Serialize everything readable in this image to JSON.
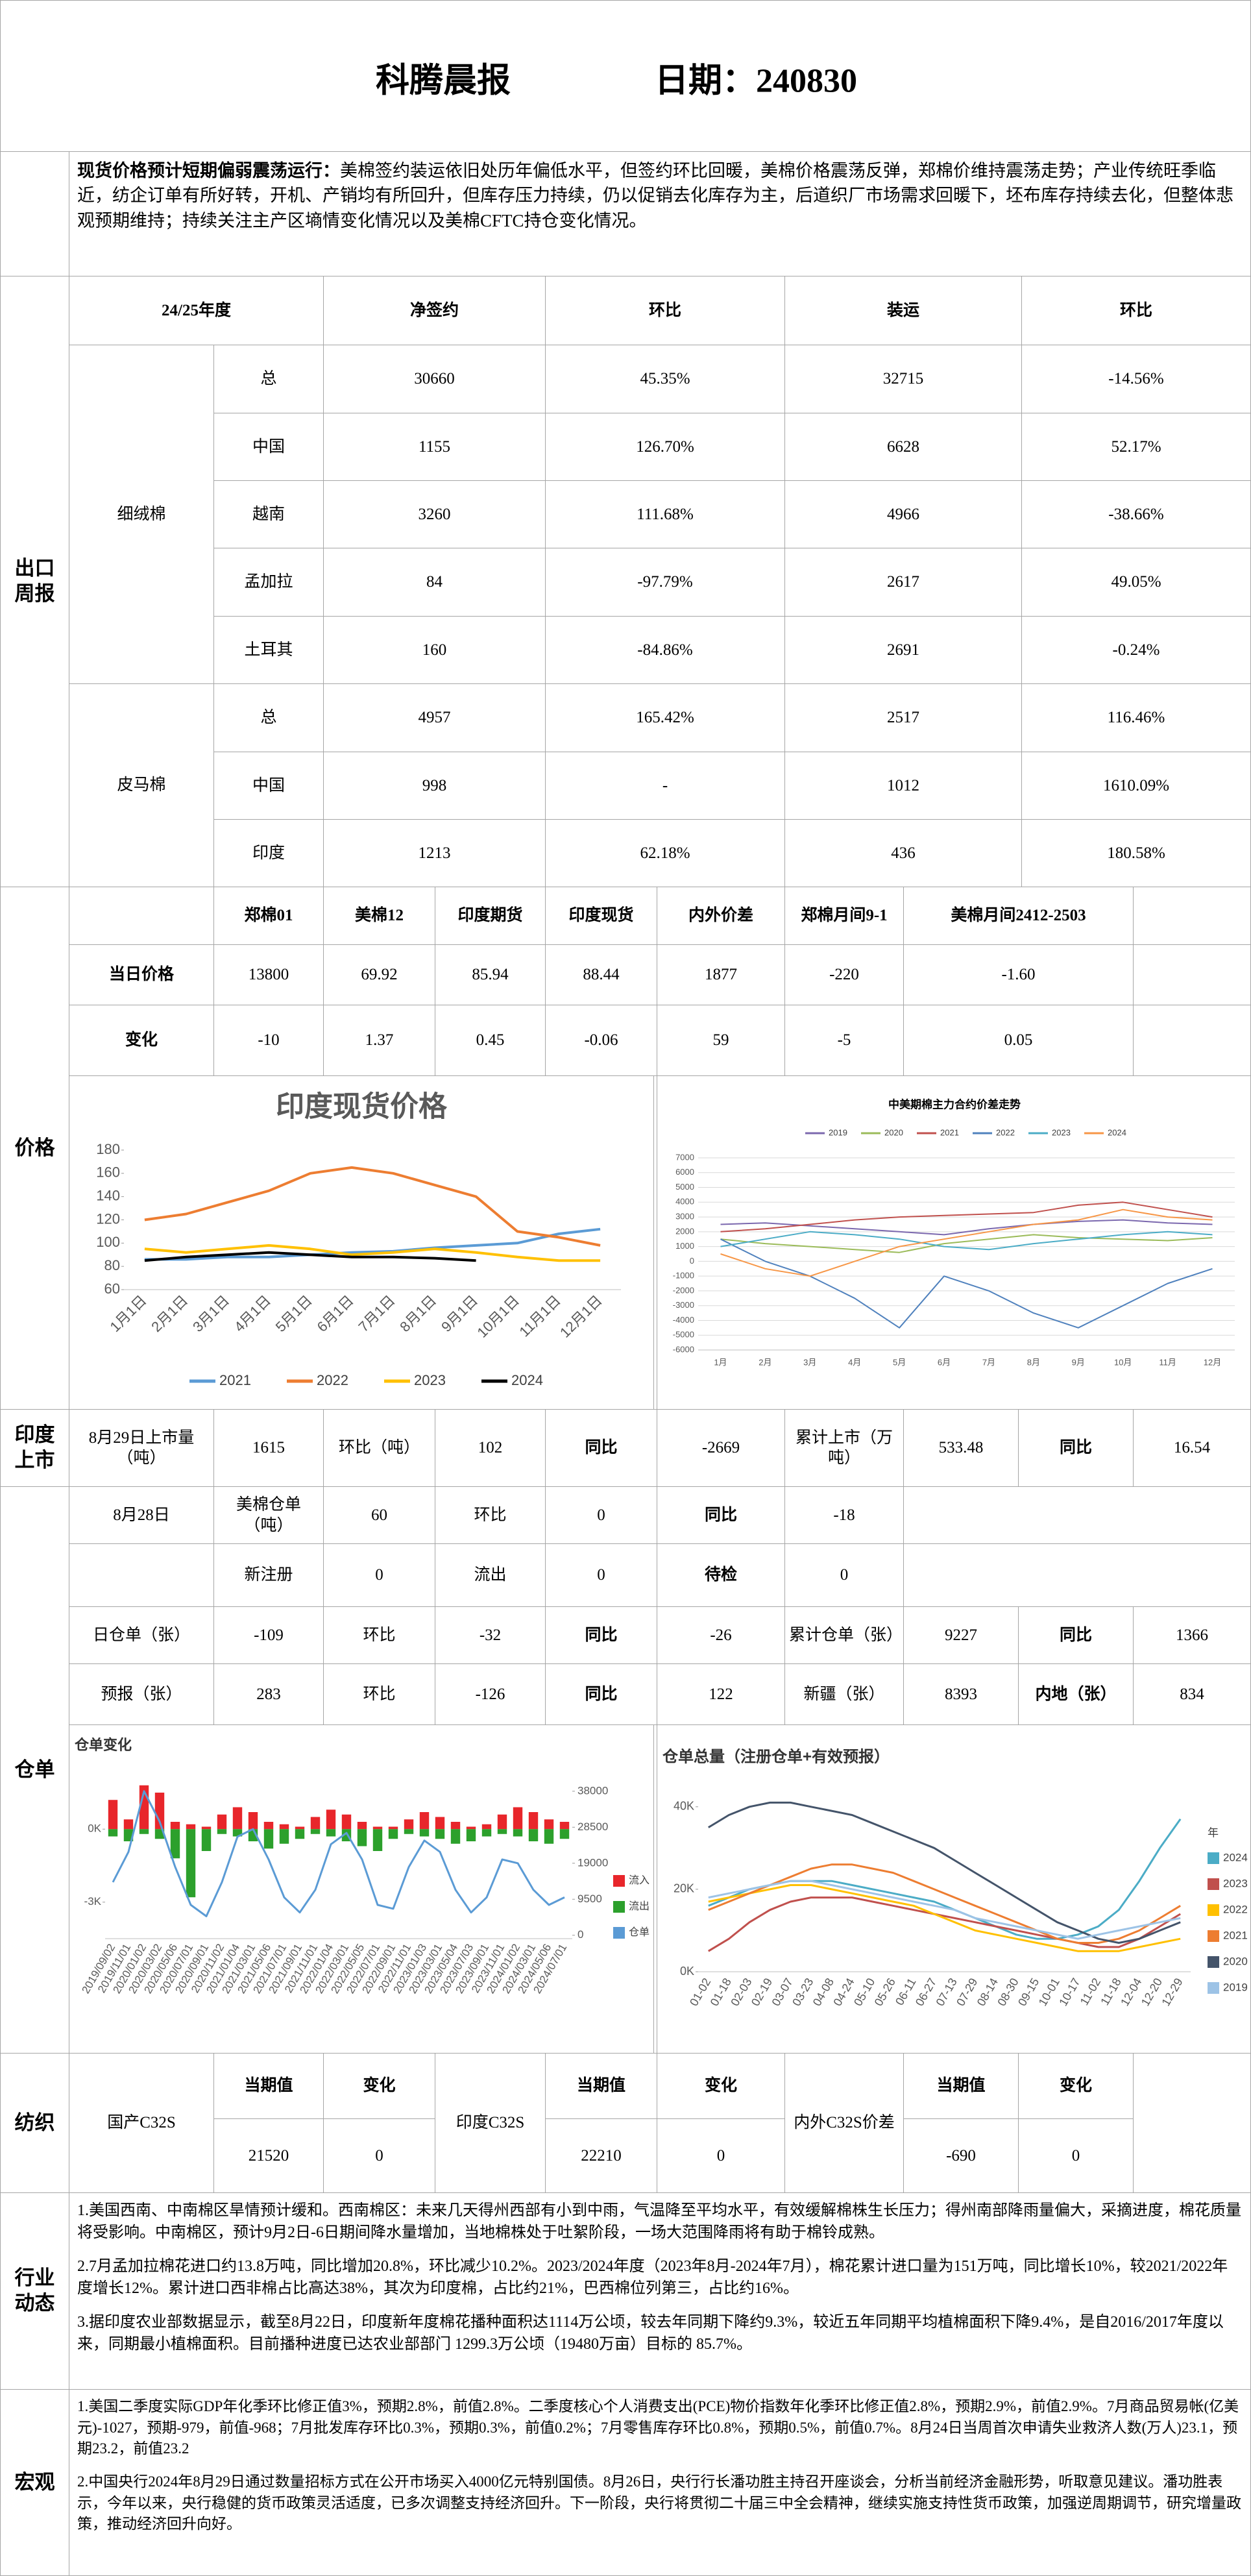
{
  "header": {
    "title": "科腾晨报",
    "date": "日期：240830"
  },
  "summary": {
    "lead": "现货价格预计短期偏弱震荡运行：",
    "text": "美棉签约装运依旧处历年偏低水平，但签约环比回暖，美棉价格震荡反弹，郑棉价维持震荡走势；产业传统旺季临近，纺企订单有所好转，开机、产销均有所回升，但库存压力持续，仍以促销去化库存为主，后道织厂市场需求回暖下，坯布库存持续去化，但整体悲观预期维持；持续关注主产区墒情变化情况以及美棉CFTC持仓变化情况。"
  },
  "export": {
    "section": "出口周报",
    "headers": [
      "24/25年度",
      "净签约",
      "环比",
      "装运",
      "环比"
    ],
    "groups": [
      {
        "name": "细绒棉",
        "rows": [
          [
            "总",
            "30660",
            "45.35%",
            "32715",
            "-14.56%"
          ],
          [
            "中国",
            "1155",
            "126.70%",
            "6628",
            "52.17%"
          ],
          [
            "越南",
            "3260",
            "111.68%",
            "4966",
            "-38.66%"
          ],
          [
            "孟加拉",
            "84",
            "-97.79%",
            "2617",
            "49.05%"
          ],
          [
            "土耳其",
            "160",
            "-84.86%",
            "2691",
            "-0.24%"
          ]
        ]
      },
      {
        "name": "皮马棉",
        "rows": [
          [
            "总",
            "4957",
            "165.42%",
            "2517",
            "116.46%"
          ],
          [
            "中国",
            "998",
            "-",
            "1012",
            "1610.09%"
          ],
          [
            "印度",
            "1213",
            "62.18%",
            "436",
            "180.58%"
          ]
        ]
      }
    ]
  },
  "price": {
    "section": "价格",
    "headers": [
      "郑棉01",
      "美棉12",
      "印度期货",
      "印度现货",
      "内外价差",
      "郑棉月间9-1",
      "美棉月间2412-2503"
    ],
    "rows": [
      [
        "当日价格",
        "13800",
        "69.92",
        "85.94",
        "88.44",
        "1877",
        "-220",
        "-1.60"
      ],
      [
        "变化",
        "-10",
        "1.37",
        "0.45",
        "-0.06",
        "59",
        "-5",
        "0.05"
      ]
    ]
  },
  "india_market": {
    "section": "印度上市",
    "cells": [
      "8月29日上市量（吨）",
      "1615",
      "环比（吨）",
      "102",
      "同比",
      "-2669",
      "累计上市（万吨）",
      "533.48",
      "同比",
      "16.54"
    ]
  },
  "warehouse": {
    "section": "仓单",
    "rows": [
      [
        "8月28日",
        "美棉仓单（吨）",
        "60",
        "环比",
        "0",
        "同比",
        "-18"
      ],
      [
        "新注册",
        "0",
        "流出",
        "0",
        "待检",
        "0"
      ],
      [
        "日仓单（张）",
        "-109",
        "环比",
        "-32",
        "同比",
        "-26",
        "累计仓单（张）",
        "9227",
        "同比",
        "1366"
      ],
      [
        "预报（张）",
        "283",
        "环比",
        "-126",
        "同比",
        "122",
        "新疆（张）",
        "8393",
        "内地（张）",
        "834"
      ]
    ]
  },
  "textile": {
    "section": "纺织",
    "groups": [
      {
        "name": "国产C32S",
        "headers": [
          "当期值",
          "变化"
        ],
        "values": [
          "21520",
          "0"
        ]
      },
      {
        "name": "印度C32S",
        "headers": [
          "当期值",
          "变化"
        ],
        "values": [
          "22210",
          "0"
        ]
      },
      {
        "name": "内外C32S价差",
        "headers": [
          "当期值",
          "变化"
        ],
        "values": [
          "-690",
          "0"
        ]
      }
    ]
  },
  "industry": {
    "section": "行业动态",
    "paragraphs": [
      "1.美国西南、中南棉区旱情预计缓和。西南棉区：未来几天得州西部有小到中雨，气温降至平均水平，有效缓解棉株生长压力；得州南部降雨量偏大，采摘进度，棉花质量将受影响。中南棉区，预计9月2日-6日期间降水量增加，当地棉株处于吐絮阶段，一场大范围降雨将有助于棉铃成熟。",
      "2.7月孟加拉棉花进口约13.8万吨，同比增加20.8%，环比减少10.2%。2023/2024年度（2023年8月-2024年7月），棉花累计进口量为151万吨，同比增长10%，较2021/2022年度增长12%。累计进口西非棉占比高达38%，其次为印度棉，占比约21%，巴西棉位列第三，占比约16%。",
      "3.据印度农业部数据显示，截至8月22日，印度新年度棉花播种面积达1114万公顷，较去年同期下降约9.3%，较近五年同期平均植棉面积下降9.4%，是自2016/2017年度以来，同期最小植棉面积。目前播种进度已达农业部部门 1299.3万公顷（19480万亩）目标的 85.7%。"
    ]
  },
  "macro": {
    "section": "宏观",
    "paragraphs": [
      "1.美国二季度实际GDP年化季环比修正值3%，预期2.8%，前值2.8%。二季度核心个人消费支出(PCE)物价指数年化季环比修正值2.8%，预期2.9%，前值2.9%。7月商品贸易帐(亿美元)-1027，预期-979，前值-968；7月批发库存环比0.3%，预期0.3%，前值0.2%；7月零售库存环比0.8%，预期0.5%，前值0.7%。8月24日当周首次申请失业救济人数(万人)23.1，预期23.2，前值23.2",
      "2.中国央行2024年8月29日通过数量招标方式在公开市场买入4000亿元特别国债。8月26日，央行行长潘功胜主持召开座谈会，分析当前经济金融形势，听取意见建议。潘功胜表示，今年以来，央行稳健的货币政策灵活适度，已多次调整支持经济回升。下一阶段，央行将贯彻二十届三中全会精神，继续实施支持性货币政策，加强逆周期调节，研究增量政策，推动经济回升向好。"
    ]
  },
  "chart_data": [
    {
      "type": "line",
      "title": "印度现货价格",
      "categories": [
        "1月1日",
        "2月1日",
        "3月1日",
        "4月1日",
        "5月1日",
        "6月1日",
        "7月1日",
        "8月1日",
        "9月1日",
        "10月1日",
        "11月1日",
        "12月1日"
      ],
      "series": [
        {
          "name": "2021",
          "color": "#5b9bd5",
          "values": [
            86,
            86,
            88,
            88,
            90,
            92,
            93,
            96,
            98,
            100,
            108,
            112
          ]
        },
        {
          "name": "2022",
          "color": "#ed7d31",
          "values": [
            120,
            125,
            135,
            145,
            160,
            165,
            160,
            150,
            140,
            110,
            105,
            98
          ]
        },
        {
          "name": "2023",
          "color": "#ffc000",
          "values": [
            95,
            92,
            95,
            98,
            95,
            90,
            92,
            95,
            92,
            88,
            85,
            85
          ]
        },
        {
          "name": "2024",
          "color": "#000000",
          "values": [
            85,
            88,
            90,
            92,
            90,
            88,
            88,
            87,
            85,
            null,
            null,
            null
          ]
        }
      ],
      "ylim": [
        60,
        180
      ],
      "yticks": [
        60,
        80,
        100,
        120,
        140,
        160,
        180
      ],
      "grid": false
    },
    {
      "type": "line",
      "title": "中美期棉主力合约价差走势",
      "categories": [
        "1月",
        "2月",
        "3月",
        "4月",
        "5月",
        "6月",
        "7月",
        "8月",
        "9月",
        "10月",
        "11月",
        "12月"
      ],
      "series": [
        {
          "name": "2019",
          "color": "#7b68ae",
          "values": [
            2500,
            2600,
            2400,
            2200,
            2000,
            1800,
            2200,
            2500,
            2700,
            2800,
            2600,
            2500
          ]
        },
        {
          "name": "2020",
          "color": "#9bbb59",
          "values": [
            1500,
            1200,
            1000,
            800,
            600,
            1200,
            1500,
            1800,
            1600,
            1500,
            1400,
            1600
          ]
        },
        {
          "name": "2021",
          "color": "#c0504d",
          "values": [
            2000,
            2200,
            2500,
            2800,
            3000,
            3100,
            3200,
            3300,
            3800,
            4000,
            3500,
            3000
          ]
        },
        {
          "name": "2022",
          "color": "#4f81bd",
          "values": [
            1500,
            0,
            -1000,
            -2500,
            -4500,
            -1000,
            -2000,
            -3500,
            -4500,
            -3000,
            -1500,
            -500
          ]
        },
        {
          "name": "2023",
          "color": "#4bacc6",
          "values": [
            1000,
            1500,
            2000,
            1800,
            1500,
            1000,
            800,
            1200,
            1500,
            1800,
            2000,
            1800
          ]
        },
        {
          "name": "2024",
          "color": "#f79646",
          "values": [
            500,
            -500,
            -1000,
            0,
            1000,
            1500,
            2000,
            2500,
            2800,
            3500,
            3000,
            2800
          ]
        }
      ],
      "ylim": [
        -6000,
        7000
      ],
      "yticks": [
        -6000,
        -5000,
        -4000,
        -3000,
        -2000,
        -1000,
        0,
        1000,
        2000,
        3000,
        4000,
        5000,
        6000,
        7000
      ],
      "grid": true
    },
    {
      "type": "bar",
      "title": "仓单变化",
      "categories": [
        "2019/09/02",
        "2019/11/01",
        "2020/01/02",
        "2020/03/02",
        "2020/05/06",
        "2020/07/01",
        "2020/09/01",
        "2020/11/02",
        "2021/01/04",
        "2021/03/01",
        "2021/05/06",
        "2021/07/01",
        "2021/09/01",
        "2021/11/01",
        "2022/01/04",
        "2022/03/01",
        "2022/05/05",
        "2022/07/01",
        "2022/09/01",
        "2022/11/01",
        "2023/01/03",
        "2023/03/01",
        "2023/05/04",
        "2023/07/03",
        "2023/09/01",
        "2023/11/01",
        "2024/01/02",
        "2024/03/01",
        "2024/05/06",
        "2024/07/01"
      ],
      "series": [
        {
          "name": "流入",
          "color": "#e8262b",
          "values": [
            1200,
            400,
            1800,
            1500,
            300,
            200,
            100,
            600,
            900,
            700,
            300,
            200,
            100,
            500,
            800,
            600,
            300,
            100,
            100,
            400,
            700,
            500,
            300,
            100,
            200,
            600,
            900,
            700,
            400,
            300
          ]
        },
        {
          "name": "流出",
          "color": "#2ca02c",
          "values": [
            -300,
            -500,
            -200,
            -400,
            -1200,
            -2800,
            -900,
            -200,
            -300,
            -500,
            -800,
            -600,
            -400,
            -200,
            -300,
            -500,
            -700,
            -900,
            -400,
            -200,
            -300,
            -400,
            -600,
            -500,
            -300,
            -200,
            -300,
            -500,
            -600,
            -400
          ]
        },
        {
          "name": "仓单",
          "color": "#5b9bd5",
          "type": "line",
          "axis": "y2",
          "values": [
            14000,
            22000,
            38000,
            30000,
            18000,
            8000,
            5000,
            14000,
            26000,
            28000,
            20000,
            10000,
            6000,
            12000,
            24000,
            27000,
            20000,
            8000,
            7000,
            18000,
            25000,
            22000,
            12000,
            6000,
            10000,
            20000,
            19000,
            12000,
            8000,
            10000
          ]
        }
      ],
      "ylim": [
        -4500,
        1900
      ],
      "yticks": [
        {
          "value": -3000,
          "label": "-3K"
        },
        {
          "value": 0,
          "label": "0K"
        }
      ],
      "y2lim": [
        -900,
        40200
      ],
      "y2ticks": [
        0,
        9500,
        19000,
        28500,
        38000
      ],
      "grid": false
    },
    {
      "type": "line",
      "title": "仓单总量（注册仓单+有效预报）",
      "legend_title": "年",
      "categories": [
        "01-02",
        "01-18",
        "02-03",
        "02-19",
        "03-07",
        "03-23",
        "04-08",
        "04-24",
        "05-10",
        "05-26",
        "06-11",
        "06-27",
        "07-13",
        "07-29",
        "08-14",
        "08-30",
        "09-15",
        "10-01",
        "10-17",
        "11-02",
        "11-18",
        "12-04",
        "12-20",
        "12-29"
      ],
      "series": [
        {
          "name": "2024",
          "color": "#4bacc6",
          "values": [
            16000,
            18000,
            20000,
            21000,
            22000,
            22000,
            22000,
            21000,
            20000,
            19000,
            18000,
            17000,
            15000,
            13000,
            11000,
            9000,
            8000,
            8000,
            9000,
            11000,
            15000,
            22000,
            30000,
            37000
          ]
        },
        {
          "name": "2023",
          "color": "#c0504d",
          "values": [
            5000,
            8000,
            12000,
            15000,
            17000,
            18000,
            18000,
            18000,
            17000,
            16000,
            15000,
            14000,
            13000,
            12000,
            11000,
            10000,
            9000,
            8000,
            7000,
            6000,
            6000,
            8000,
            11000,
            14000
          ]
        },
        {
          "name": "2022",
          "color": "#ffc000",
          "values": [
            17000,
            18000,
            19000,
            20000,
            21000,
            21000,
            20000,
            19000,
            18000,
            17000,
            16000,
            14000,
            12000,
            10000,
            9000,
            8000,
            7000,
            6000,
            5000,
            5000,
            5000,
            6000,
            7000,
            8000
          ]
        },
        {
          "name": "2021",
          "color": "#ed7d31",
          "values": [
            15000,
            17000,
            19000,
            21000,
            23000,
            25000,
            26000,
            26000,
            25000,
            24000,
            22000,
            20000,
            18000,
            16000,
            14000,
            12000,
            10000,
            8000,
            7000,
            7000,
            8000,
            10000,
            13000,
            16000
          ]
        },
        {
          "name": "2020",
          "color": "#44546a",
          "values": [
            35000,
            38000,
            40000,
            41000,
            41000,
            40000,
            39000,
            38000,
            36000,
            34000,
            32000,
            30000,
            27000,
            24000,
            21000,
            18000,
            15000,
            12000,
            10000,
            8000,
            7000,
            8000,
            10000,
            12000
          ]
        },
        {
          "name": "2019",
          "color": "#9dc3e6",
          "values": [
            18000,
            19000,
            20000,
            21000,
            22000,
            22000,
            21000,
            20000,
            19000,
            18000,
            17000,
            16000,
            15000,
            13000,
            12000,
            11000,
            10000,
            9000,
            8000,
            9000,
            10000,
            11000,
            12000,
            13000
          ]
        }
      ],
      "ylim": [
        0,
        45000
      ],
      "yticks": [
        {
          "value": 0,
          "label": "0K"
        },
        {
          "value": 20000,
          "label": "20K"
        },
        {
          "value": 40000,
          "label": "40K"
        }
      ],
      "grid": false
    }
  ]
}
